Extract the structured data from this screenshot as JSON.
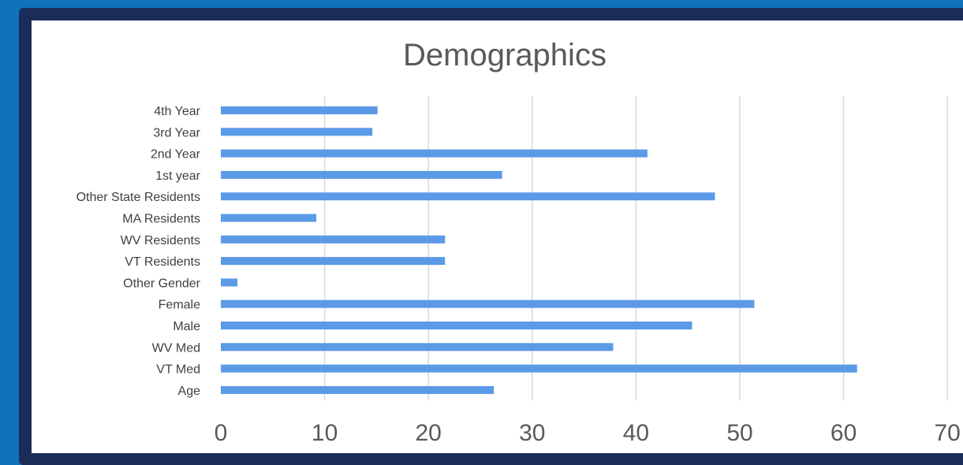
{
  "chart_data": {
    "type": "bar",
    "orientation": "horizontal",
    "title": "Demographics",
    "categories": [
      "4th Year",
      "3rd Year",
      "2nd Year",
      "1st year",
      "Other State Residents",
      "MA Residents",
      "WV Residents",
      "VT Residents",
      "Other Gender",
      "Female",
      "Male",
      "WV Med",
      "VT Med",
      "Age"
    ],
    "values": [
      15.1,
      14.6,
      41.1,
      27.1,
      47.6,
      9.2,
      21.6,
      21.6,
      1.6,
      51.4,
      45.4,
      37.8,
      61.3,
      26.3
    ],
    "xlim": [
      0,
      70
    ],
    "ticks": [
      "0",
      "10",
      "20",
      "30",
      "40",
      "50",
      "60",
      "70"
    ],
    "grid": true,
    "legend": "none",
    "colors": {
      "bar": "#5b9ae6",
      "background": "#0f73b9",
      "frame": "#1b2b5a"
    }
  }
}
